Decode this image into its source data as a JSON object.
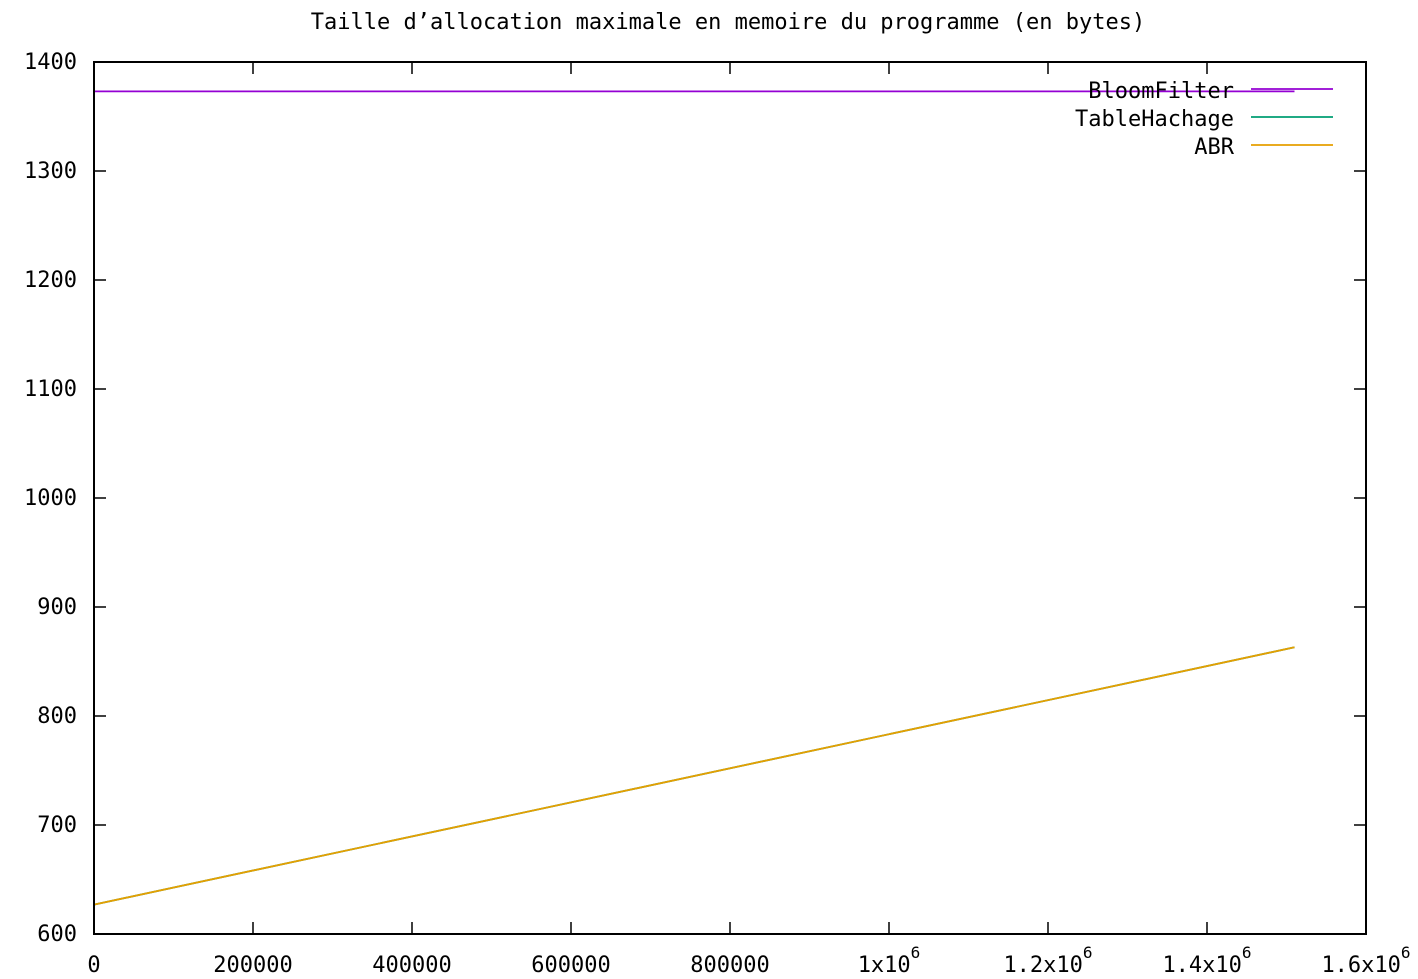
{
  "chart_data": {
    "type": "line",
    "title": "Taille d’allocation maximale en memoire du programme (en bytes)",
    "xlabel": "",
    "ylabel": "",
    "xlim": [
      0,
      1600000
    ],
    "ylim": [
      600,
      1400
    ],
    "x_ticks": [
      {
        "value": 0,
        "label": "0"
      },
      {
        "value": 200000,
        "label": "200000"
      },
      {
        "value": 400000,
        "label": "400000"
      },
      {
        "value": 600000,
        "label": "600000"
      },
      {
        "value": 800000,
        "label": "800000"
      },
      {
        "value": 1000000,
        "label": "1x10",
        "exp": "6"
      },
      {
        "value": 1200000,
        "label": "1.2x10",
        "exp": "6"
      },
      {
        "value": 1400000,
        "label": "1.4x10",
        "exp": "6"
      },
      {
        "value": 1600000,
        "label": "1.6x10",
        "exp": "6"
      }
    ],
    "y_ticks": [
      {
        "value": 600,
        "label": "600"
      },
      {
        "value": 700,
        "label": "700"
      },
      {
        "value": 800,
        "label": "800"
      },
      {
        "value": 900,
        "label": "900"
      },
      {
        "value": 1000,
        "label": "1000"
      },
      {
        "value": 1100,
        "label": "1100"
      },
      {
        "value": 1200,
        "label": "1200"
      },
      {
        "value": 1300,
        "label": "1300"
      },
      {
        "value": 1400,
        "label": "1400"
      }
    ],
    "grid": false,
    "legend_position": "top-right",
    "series": [
      {
        "name": "BloomFilter",
        "color": "#9400d3",
        "x": [
          0,
          1510000
        ],
        "y": [
          1373,
          1373
        ]
      },
      {
        "name": "TableHachage",
        "color": "#009e73",
        "x": [
          0,
          1510000
        ],
        "y": [
          627,
          863
        ]
      },
      {
        "name": "ABR",
        "color": "#e69f00",
        "x": [
          0,
          1510000
        ],
        "y": [
          627,
          863
        ]
      }
    ]
  }
}
